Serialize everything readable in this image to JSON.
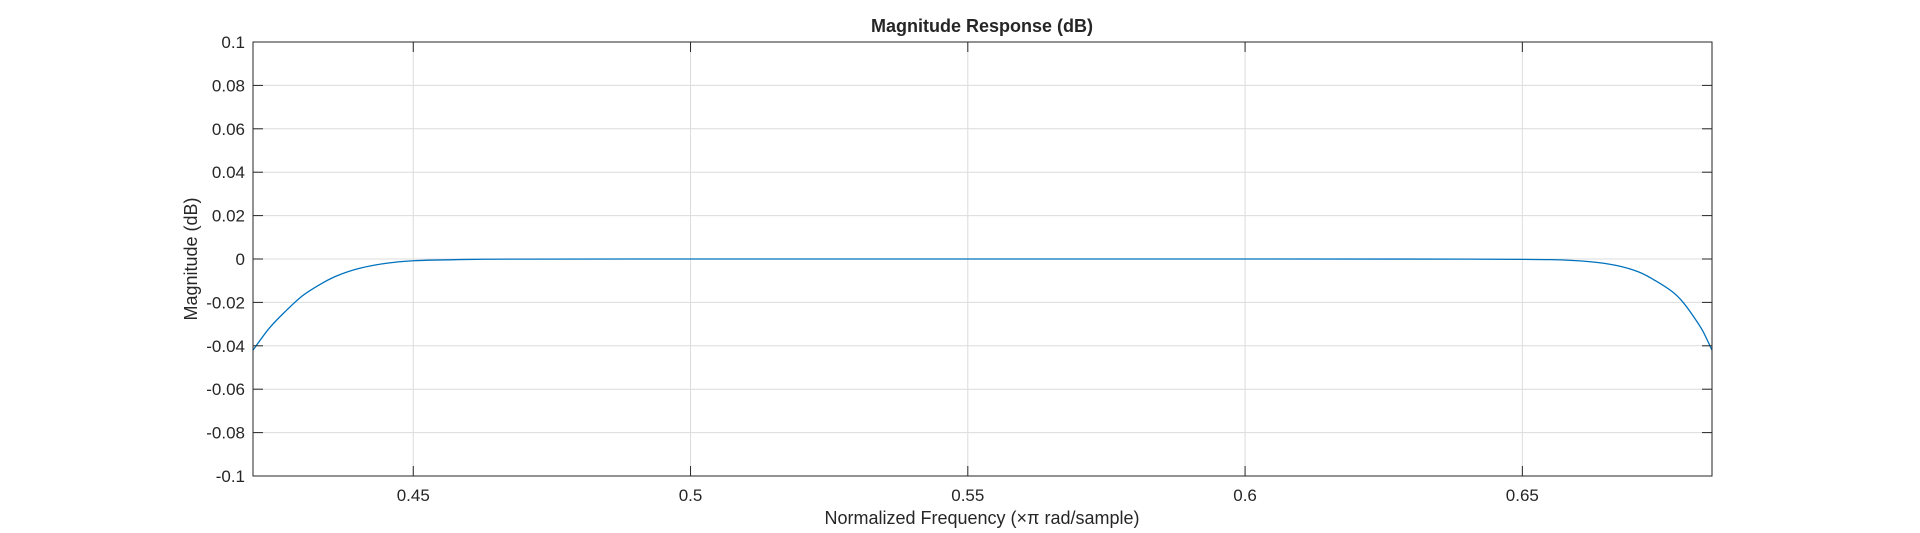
{
  "chart_data": {
    "type": "line",
    "title": "Magnitude Response (dB)",
    "xlabel": "Normalized Frequency (×π rad/sample)",
    "ylabel": "Magnitude (dB)",
    "xlim": [
      0.4211,
      0.6842
    ],
    "ylim": [
      -0.1,
      0.1
    ],
    "xticks": [
      0.45,
      0.5,
      0.55,
      0.6,
      0.65
    ],
    "xtick_labels": [
      "0.45",
      "0.5",
      "0.55",
      "0.6",
      "0.65"
    ],
    "yticks": [
      -0.1,
      -0.08,
      -0.06,
      -0.04,
      -0.02,
      0,
      0.02,
      0.04,
      0.06,
      0.08,
      0.1
    ],
    "ytick_labels": [
      "-0.1",
      "-0.08",
      "-0.06",
      "-0.04",
      "-0.02",
      "0",
      "0.02",
      "0.04",
      "0.06",
      "0.08",
      "0.1"
    ],
    "grid": true,
    "legend": "none",
    "series_color": "#0072BD",
    "series": [
      {
        "x": [
          0.4211,
          0.424,
          0.427,
          0.43,
          0.433,
          0.436,
          0.44,
          0.445,
          0.45,
          0.46,
          0.47,
          0.5,
          0.55,
          0.6,
          0.64,
          0.655,
          0.662,
          0.667,
          0.671,
          0.674,
          0.677,
          0.679,
          0.681,
          0.6825,
          0.6842
        ],
        "y": [
          -0.042,
          -0.032,
          -0.024,
          -0.017,
          -0.012,
          -0.008,
          -0.0045,
          -0.002,
          -0.0008,
          -0.0002,
          -5e-05,
          0,
          0,
          0,
          -5e-05,
          -0.0003,
          -0.0012,
          -0.003,
          -0.006,
          -0.01,
          -0.015,
          -0.02,
          -0.027,
          -0.033,
          -0.042
        ]
      }
    ]
  }
}
